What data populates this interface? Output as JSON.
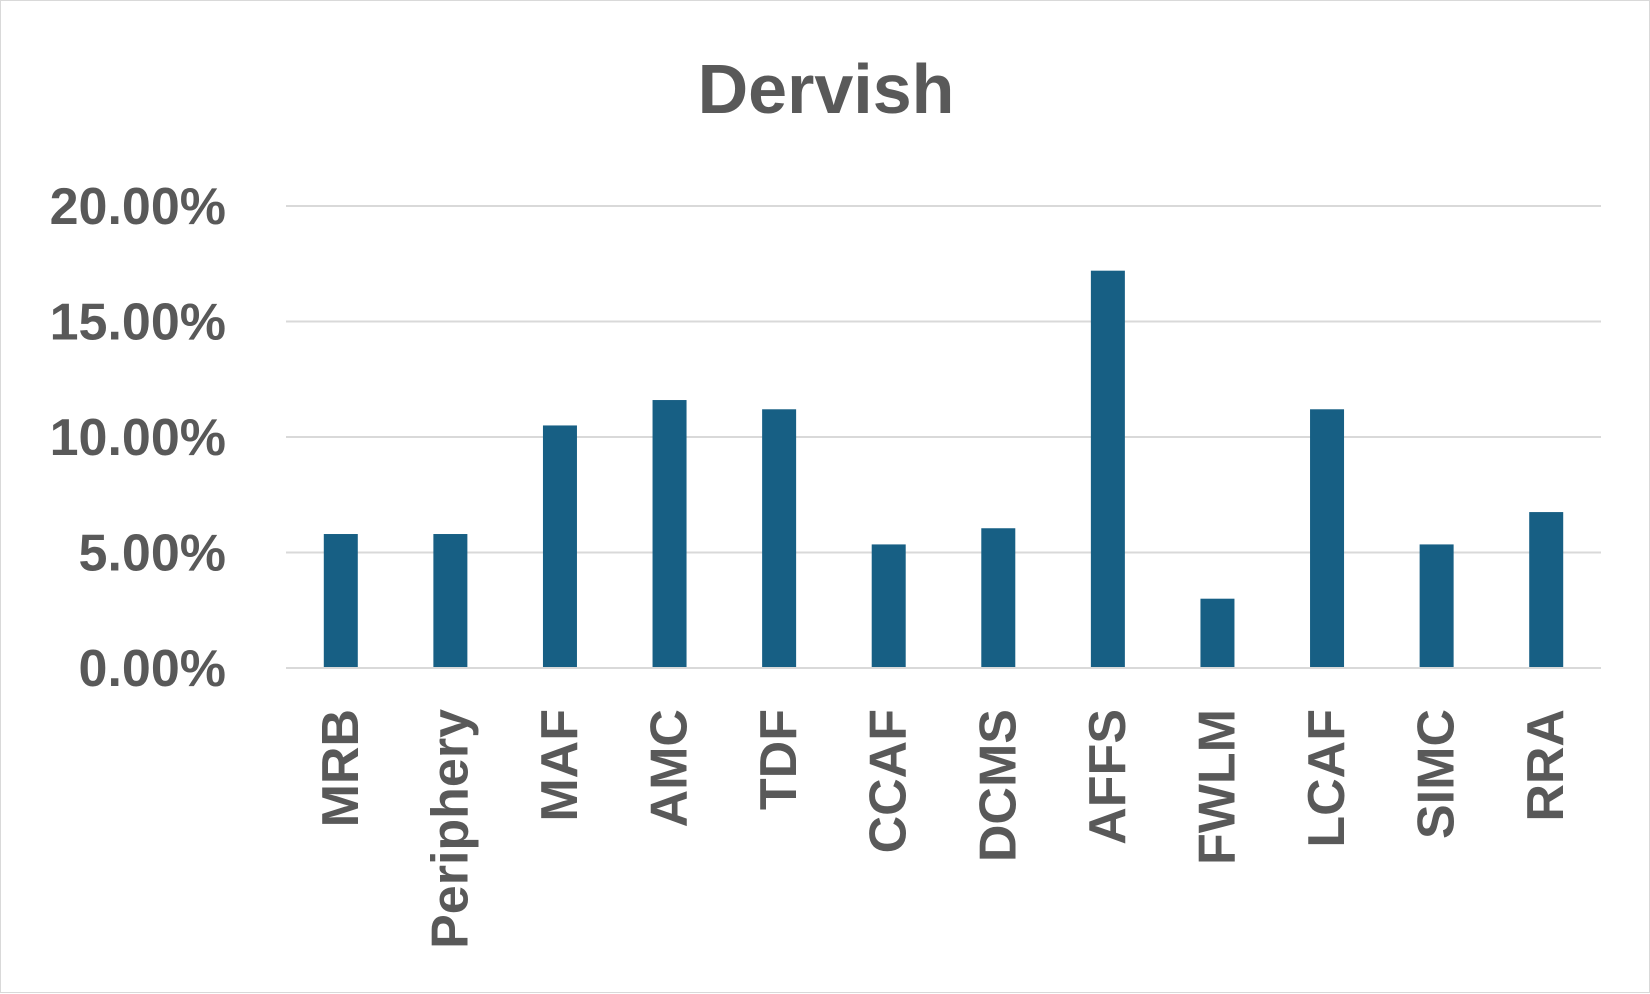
{
  "chart_data": {
    "type": "bar",
    "title": "Dervish",
    "xlabel": "",
    "ylabel": "",
    "categories": [
      "MRB",
      "Periphery",
      "MAF",
      "AMC",
      "TDF",
      "CCAF",
      "DCMS",
      "AFFS",
      "FWLM",
      "LCAF",
      "SIMC",
      "RRA"
    ],
    "values": [
      5.8,
      5.8,
      10.5,
      11.6,
      11.2,
      5.35,
      6.05,
      17.2,
      3.0,
      11.2,
      5.35,
      6.75
    ],
    "ylim": [
      0,
      20
    ],
    "yticks": [
      0,
      5,
      10,
      15,
      20
    ],
    "ytick_labels": [
      "0.00%",
      "5.00%",
      "10.00%",
      "15.00%",
      "20.00%"
    ],
    "grid": true,
    "legend": "none",
    "bar_color": "#175f84"
  }
}
